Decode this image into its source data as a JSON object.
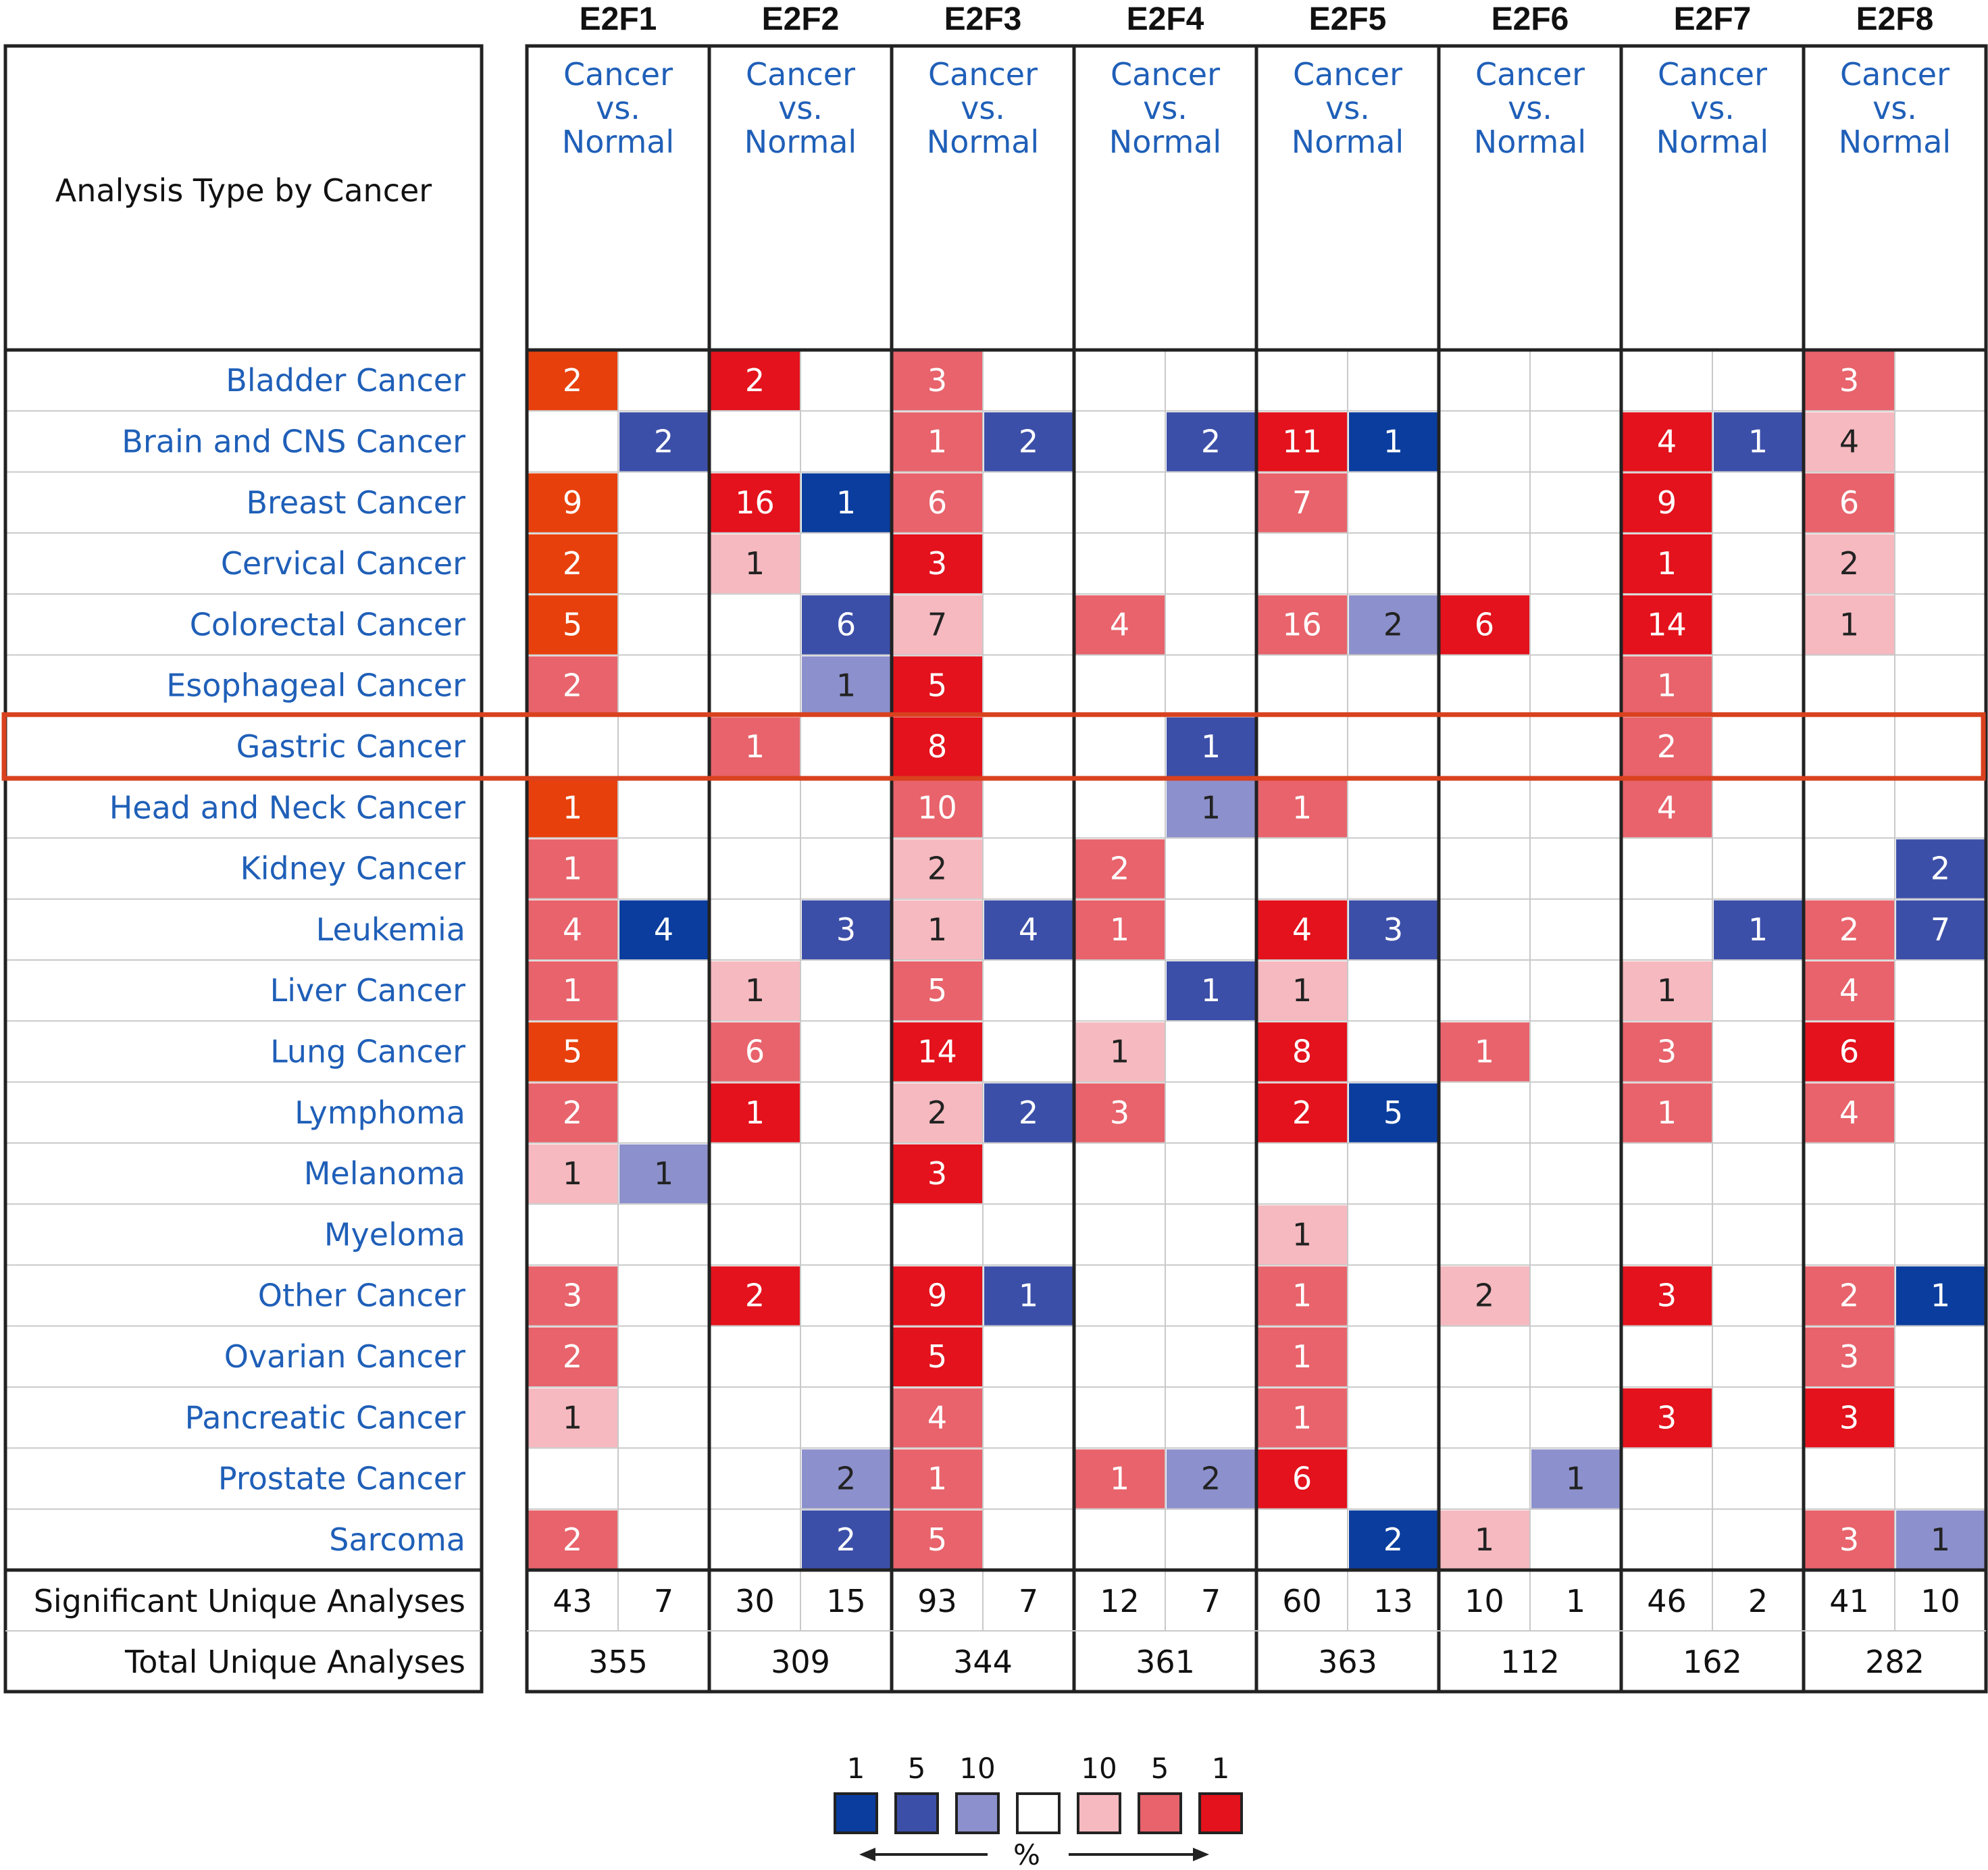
{
  "chart_data": {
    "type": "heatmap",
    "row_header": "Analysis Type by Cancer",
    "column_subtitle": [
      "Cancer",
      "vs.",
      "Normal"
    ],
    "genes": [
      "E2F1",
      "E2F2",
      "E2F3",
      "E2F4",
      "E2F5",
      "E2F6",
      "E2F7",
      "E2F8"
    ],
    "highlighted_row": "Gastric Cancer",
    "colors": {
      "up1": "#e3121c",
      "up5": "#e8636b",
      "up10": "#f5b9bf",
      "down1": "#0a3d9e",
      "down5": "#3c4fa8",
      "down10": "#8c90cc",
      "orange": "#e8400c",
      "text_blue": "#1f5fb8",
      "highlight": "#d9411f"
    },
    "rows": [
      {
        "name": "Bladder Cancer",
        "cells": [
          [
            "2",
            "orange"
          ],
          null,
          [
            "2",
            "up1"
          ],
          null,
          [
            "3",
            "up5"
          ],
          null,
          null,
          null,
          null,
          null,
          null,
          null,
          null,
          null,
          [
            "3",
            "up5"
          ],
          null
        ]
      },
      {
        "name": "Brain and CNS Cancer",
        "cells": [
          null,
          [
            "2",
            "down5"
          ],
          null,
          null,
          [
            "1",
            "up5"
          ],
          [
            "2",
            "down5"
          ],
          null,
          [
            "2",
            "down5"
          ],
          [
            "11",
            "up1"
          ],
          [
            "1",
            "down1"
          ],
          null,
          null,
          [
            "4",
            "up1"
          ],
          [
            "1",
            "down5"
          ],
          [
            "4",
            "up10"
          ],
          null
        ]
      },
      {
        "name": "Breast Cancer",
        "cells": [
          [
            "9",
            "orange"
          ],
          null,
          [
            "16",
            "up1"
          ],
          [
            "1",
            "down1"
          ],
          [
            "6",
            "up5"
          ],
          null,
          null,
          null,
          [
            "7",
            "up5"
          ],
          null,
          null,
          null,
          [
            "9",
            "up1"
          ],
          null,
          [
            "6",
            "up5"
          ],
          null
        ]
      },
      {
        "name": "Cervical Cancer",
        "cells": [
          [
            "2",
            "orange"
          ],
          null,
          [
            "1",
            "up10"
          ],
          null,
          [
            "3",
            "up1"
          ],
          null,
          null,
          null,
          null,
          null,
          null,
          null,
          [
            "1",
            "up1"
          ],
          null,
          [
            "2",
            "up10"
          ],
          null
        ]
      },
      {
        "name": "Colorectal Cancer",
        "cells": [
          [
            "5",
            "orange"
          ],
          null,
          null,
          [
            "6",
            "down5"
          ],
          [
            "7",
            "up10"
          ],
          null,
          [
            "4",
            "up5"
          ],
          null,
          [
            "16",
            "up5"
          ],
          [
            "2",
            "down10"
          ],
          [
            "6",
            "up1"
          ],
          null,
          [
            "14",
            "up1"
          ],
          null,
          [
            "1",
            "up10"
          ],
          null
        ]
      },
      {
        "name": "Esophageal Cancer",
        "cells": [
          [
            "2",
            "up5"
          ],
          null,
          null,
          [
            "1",
            "down10"
          ],
          [
            "5",
            "up1"
          ],
          null,
          null,
          null,
          null,
          null,
          null,
          null,
          [
            "1",
            "up5"
          ],
          null,
          null,
          null
        ]
      },
      {
        "name": "Gastric Cancer",
        "cells": [
          null,
          null,
          [
            "1",
            "up5"
          ],
          null,
          [
            "8",
            "up1"
          ],
          null,
          null,
          [
            "1",
            "down5"
          ],
          null,
          null,
          null,
          null,
          [
            "2",
            "up5"
          ],
          null,
          null,
          null
        ]
      },
      {
        "name": "Head and Neck Cancer",
        "cells": [
          [
            "1",
            "orange"
          ],
          null,
          null,
          null,
          [
            "10",
            "up5"
          ],
          null,
          null,
          [
            "1",
            "down10"
          ],
          [
            "1",
            "up5"
          ],
          null,
          null,
          null,
          [
            "4",
            "up5"
          ],
          null,
          null,
          null
        ]
      },
      {
        "name": "Kidney Cancer",
        "cells": [
          [
            "1",
            "up5"
          ],
          null,
          null,
          null,
          [
            "2",
            "up10"
          ],
          null,
          [
            "2",
            "up5"
          ],
          null,
          null,
          null,
          null,
          null,
          null,
          null,
          null,
          [
            "2",
            "down5"
          ]
        ]
      },
      {
        "name": "Leukemia",
        "cells": [
          [
            "4",
            "up5"
          ],
          [
            "4",
            "down1"
          ],
          null,
          [
            "3",
            "down5"
          ],
          [
            "1",
            "up10"
          ],
          [
            "4",
            "down5"
          ],
          [
            "1",
            "up5"
          ],
          null,
          [
            "4",
            "up1"
          ],
          [
            "3",
            "down5"
          ],
          null,
          null,
          null,
          [
            "1",
            "down5"
          ],
          [
            "2",
            "up5"
          ],
          [
            "7",
            "down5"
          ]
        ]
      },
      {
        "name": "Liver Cancer",
        "cells": [
          [
            "1",
            "up5"
          ],
          null,
          [
            "1",
            "up10"
          ],
          null,
          [
            "5",
            "up5"
          ],
          null,
          null,
          [
            "1",
            "down5"
          ],
          [
            "1",
            "up10"
          ],
          null,
          null,
          null,
          [
            "1",
            "up10"
          ],
          null,
          [
            "4",
            "up5"
          ],
          null
        ]
      },
      {
        "name": "Lung Cancer",
        "cells": [
          [
            "5",
            "orange"
          ],
          null,
          [
            "6",
            "up5"
          ],
          null,
          [
            "14",
            "up1"
          ],
          null,
          [
            "1",
            "up10"
          ],
          null,
          [
            "8",
            "up1"
          ],
          null,
          [
            "1",
            "up5"
          ],
          null,
          [
            "3",
            "up5"
          ],
          null,
          [
            "6",
            "up1"
          ],
          null
        ]
      },
      {
        "name": "Lymphoma",
        "cells": [
          [
            "2",
            "up5"
          ],
          null,
          [
            "1",
            "up1"
          ],
          null,
          [
            "2",
            "up10"
          ],
          [
            "2",
            "down5"
          ],
          [
            "3",
            "up5"
          ],
          null,
          [
            "2",
            "up1"
          ],
          [
            "5",
            "down1"
          ],
          null,
          null,
          [
            "1",
            "up5"
          ],
          null,
          [
            "4",
            "up5"
          ],
          null
        ]
      },
      {
        "name": "Melanoma",
        "cells": [
          [
            "1",
            "up10"
          ],
          [
            "1",
            "down10"
          ],
          null,
          null,
          [
            "3",
            "up1"
          ],
          null,
          null,
          null,
          null,
          null,
          null,
          null,
          null,
          null,
          null,
          null
        ]
      },
      {
        "name": "Myeloma",
        "cells": [
          null,
          null,
          null,
          null,
          null,
          null,
          null,
          null,
          [
            "1",
            "up10"
          ],
          null,
          null,
          null,
          null,
          null,
          null,
          null
        ]
      },
      {
        "name": "Other Cancer",
        "cells": [
          [
            "3",
            "up5"
          ],
          null,
          [
            "2",
            "up1"
          ],
          null,
          [
            "9",
            "up1"
          ],
          [
            "1",
            "down5"
          ],
          null,
          null,
          [
            "1",
            "up5"
          ],
          null,
          [
            "2",
            "up10"
          ],
          null,
          [
            "3",
            "up1"
          ],
          null,
          [
            "2",
            "up5"
          ],
          [
            "1",
            "down1"
          ]
        ]
      },
      {
        "name": "Ovarian Cancer",
        "cells": [
          [
            "2",
            "up5"
          ],
          null,
          null,
          null,
          [
            "5",
            "up1"
          ],
          null,
          null,
          null,
          [
            "1",
            "up5"
          ],
          null,
          null,
          null,
          null,
          null,
          [
            "3",
            "up5"
          ],
          null
        ]
      },
      {
        "name": "Pancreatic Cancer",
        "cells": [
          [
            "1",
            "up10"
          ],
          null,
          null,
          null,
          [
            "4",
            "up5"
          ],
          null,
          null,
          null,
          [
            "1",
            "up5"
          ],
          null,
          null,
          null,
          [
            "3",
            "up1"
          ],
          null,
          [
            "3",
            "up1"
          ],
          null
        ]
      },
      {
        "name": "Prostate Cancer",
        "cells": [
          null,
          null,
          null,
          [
            "2",
            "down10"
          ],
          [
            "1",
            "up5"
          ],
          null,
          [
            "1",
            "up5"
          ],
          [
            "2",
            "down10"
          ],
          [
            "6",
            "up1"
          ],
          null,
          null,
          [
            "1",
            "down10"
          ],
          null,
          null,
          null,
          null
        ]
      },
      {
        "name": "Sarcoma",
        "cells": [
          [
            "2",
            "up5"
          ],
          null,
          null,
          [
            "2",
            "down5"
          ],
          [
            "5",
            "up5"
          ],
          null,
          null,
          null,
          null,
          [
            "2",
            "down1"
          ],
          [
            "1",
            "up10"
          ],
          null,
          null,
          null,
          [
            "3",
            "up5"
          ],
          [
            "1",
            "down10"
          ]
        ]
      }
    ],
    "significant_label": "Significant Unique Analyses",
    "significant": [
      [
        "43",
        "7"
      ],
      [
        "30",
        "15"
      ],
      [
        "93",
        "7"
      ],
      [
        "12",
        "7"
      ],
      [
        "60",
        "13"
      ],
      [
        "10",
        "1"
      ],
      [
        "46",
        "2"
      ],
      [
        "41",
        "10"
      ]
    ],
    "total_label": "Total Unique Analyses",
    "total": [
      "355",
      "309",
      "344",
      "361",
      "363",
      "112",
      "162",
      "282"
    ],
    "legend": {
      "labels_left": [
        "1",
        "5",
        "10"
      ],
      "labels_right": [
        "10",
        "5",
        "1"
      ],
      "swatches": [
        "down1",
        "down5",
        "down10",
        "blank",
        "up10",
        "up5",
        "up1"
      ],
      "percent": "%"
    }
  }
}
